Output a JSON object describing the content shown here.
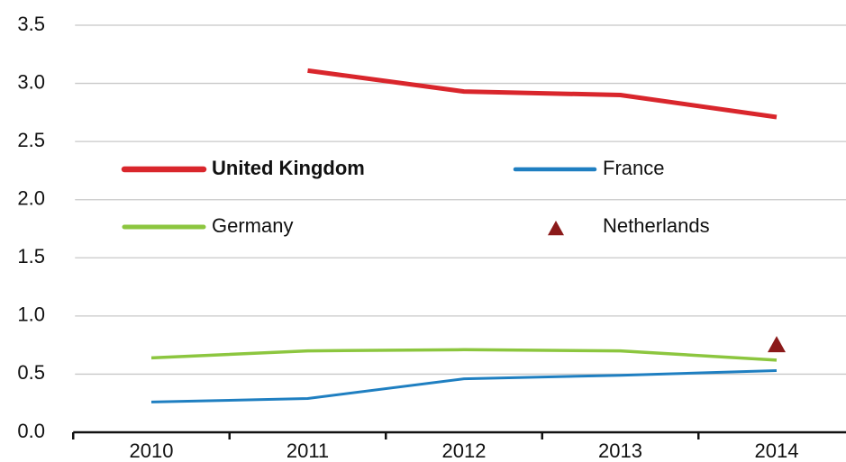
{
  "chart_data": {
    "type": "line",
    "categories": [
      "2010",
      "2011",
      "2012",
      "2013",
      "2014"
    ],
    "series": [
      {
        "name": "United Kingdom",
        "color": "#d9262c",
        "line_width": 5,
        "values": [
          null,
          3.11,
          2.93,
          2.9,
          2.71
        ]
      },
      {
        "name": "France",
        "color": "#1f7fc1",
        "line_width": 3,
        "values": [
          0.26,
          0.29,
          0.46,
          0.49,
          0.53
        ]
      },
      {
        "name": "Germany",
        "color": "#8cc63f",
        "line_width": 3.5,
        "values": [
          0.64,
          0.7,
          0.71,
          0.7,
          0.62
        ]
      },
      {
        "name": "Netherlands",
        "color": "#8b1a1a",
        "marker": "triangle",
        "values": [
          null,
          null,
          null,
          null,
          0.75
        ]
      }
    ],
    "ylim": [
      0,
      3.5
    ],
    "yticks": [
      {
        "value": 0,
        "label": "0.0"
      },
      0.5,
      {
        "value": 1,
        "label": "1.0"
      },
      1.5,
      {
        "value": 2,
        "label": "2.0"
      },
      2.5,
      {
        "value": 3,
        "label": "3.0"
      },
      3.5
    ],
    "grid": true
  }
}
